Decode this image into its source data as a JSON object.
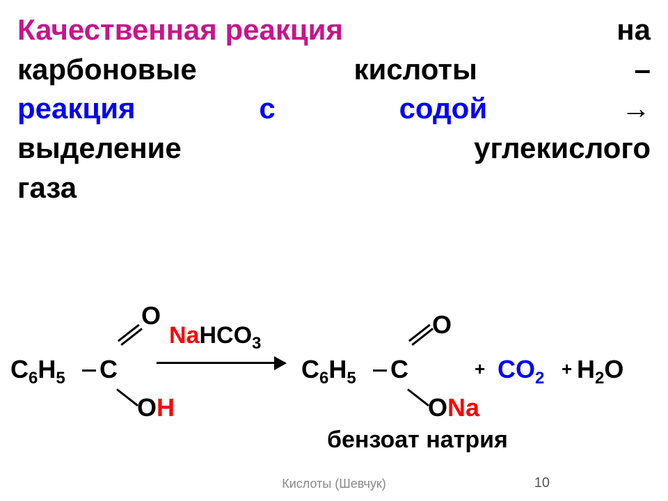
{
  "title": {
    "part1": "Качественная реакция",
    "part2": "на",
    "part3": "карбоновые",
    "part4": "кислоты",
    "part5": "–",
    "part6": "реакция",
    "part7": "с",
    "part8": "содой",
    "arrow": "→",
    "part9": "выделение",
    "part10": "углекислого",
    "part11": "газа"
  },
  "reaction": {
    "reactant_group": "C",
    "reactant_sub1": "6",
    "reactant_h": "H",
    "reactant_sub2": "5",
    "carbon": "C",
    "oxygen_top": "O",
    "oh_o": "O",
    "oh_h": "H",
    "reagent_na": "Na",
    "reagent_rest": "HCO",
    "reagent_sub": "3",
    "product_group": "C",
    "product_sub1": "6",
    "product_h": "H",
    "product_sub2": "5",
    "product_carbon": "C",
    "product_o_top": "O",
    "ona_o": "O",
    "ona_na": "Na",
    "plus": "+",
    "co2_c": "CO",
    "co2_sub": "2",
    "h2o_h": "H",
    "h2o_sub": "2",
    "h2o_o": "O",
    "product_name": "бензоат натрия"
  },
  "footer": {
    "text": "Кислоты (Шевчук)",
    "page": "10"
  },
  "colors": {
    "magenta": "#c8148c",
    "blue": "#0000ff",
    "red": "#ff0000",
    "black": "#000000",
    "background": "#ffffff"
  }
}
